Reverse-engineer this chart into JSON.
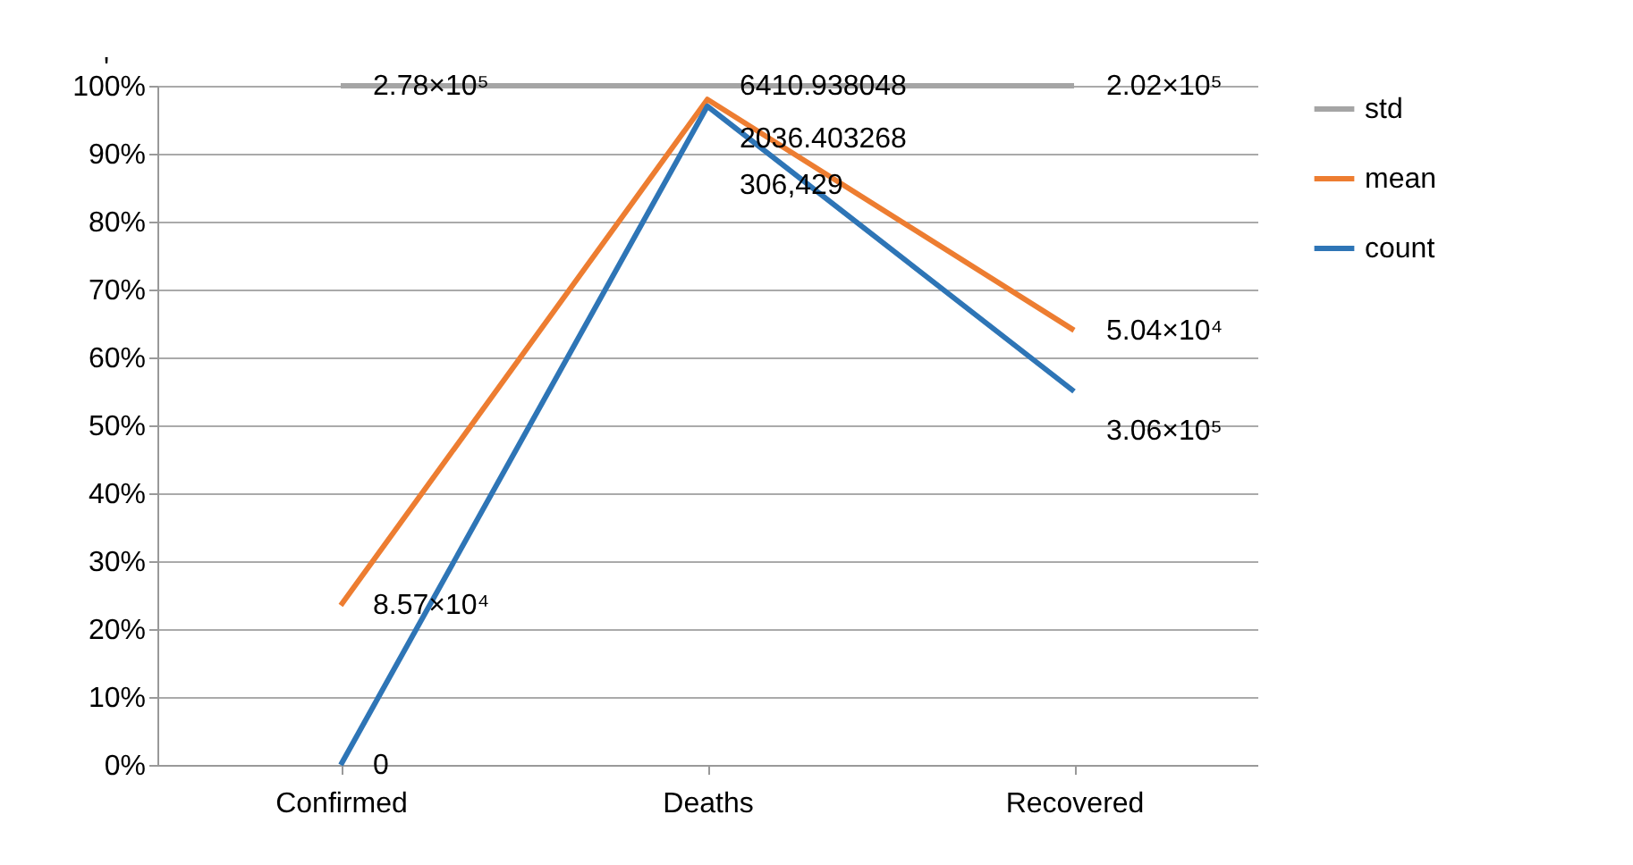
{
  "chart_data": {
    "type": "line",
    "categories": [
      "Confirmed",
      "Deaths",
      "Recovered"
    ],
    "series": [
      {
        "name": "std",
        "color": "#a5a5a5",
        "values": [
          100,
          100,
          100
        ]
      },
      {
        "name": "mean",
        "color": "#ed7d31",
        "values": [
          23.5,
          98,
          64
        ]
      },
      {
        "name": "count",
        "color": "#2e75b6",
        "values": [
          0,
          97,
          55
        ]
      }
    ],
    "ylim": [
      0,
      100
    ],
    "yticks": [
      {
        "value": 0,
        "label": "0%"
      },
      {
        "value": 10,
        "label": "10%"
      },
      {
        "value": 20,
        "label": "20%"
      },
      {
        "value": 30,
        "label": "30%"
      },
      {
        "value": 40,
        "label": "40%"
      },
      {
        "value": 50,
        "label": "50%"
      },
      {
        "value": 60,
        "label": "60%"
      },
      {
        "value": 70,
        "label": "70%"
      },
      {
        "value": 80,
        "label": "80%"
      },
      {
        "value": 90,
        "label": "90%"
      },
      {
        "value": 100,
        "label": "100%"
      }
    ],
    "grid": "y",
    "legend": "right",
    "marker": "none",
    "line_style": "solid",
    "annotations": [
      "ʹ",
      {
        "text": "2.78×10⁵",
        "x": "Confirmed",
        "y": 100
      },
      {
        "text": "6410.938048",
        "x": "Deaths",
        "y": 100
      },
      {
        "text": "2.02×10⁵",
        "x": "Recovered",
        "y": 100
      },
      {
        "text": "8.57×10⁴",
        "x": "Confirmed",
        "y": 23.5
      },
      {
        "text": "2036.403268",
        "x": "Deaths",
        "y": 98
      },
      {
        "text": "5.04×10⁴",
        "x": "Recovered",
        "y": 64
      },
      {
        "text": "0",
        "x": "Confirmed",
        "y": 0
      },
      {
        "text": "306,429",
        "x": "Deaths",
        "y": 97
      },
      {
        "text": "3.06×10⁵",
        "x": "Recovered",
        "y": 55
      }
    ]
  }
}
